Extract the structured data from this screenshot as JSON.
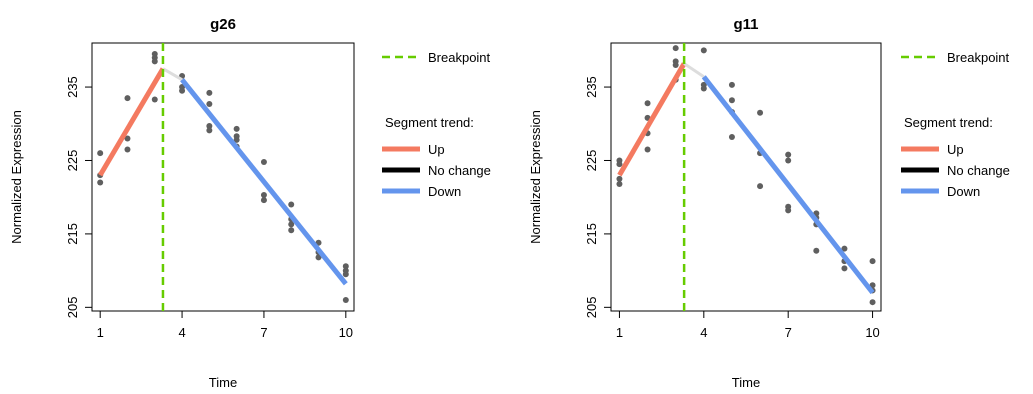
{
  "chart_data": [
    {
      "type": "scatter",
      "title": "g26",
      "xlabel": "Time",
      "ylabel": "Normalized Expression",
      "xlim": [
        0.7,
        10.3
      ],
      "ylim": [
        204.5,
        241
      ],
      "xticks": [
        "1",
        "4",
        "7",
        "10"
      ],
      "yticks": [
        "205",
        "215",
        "225",
        "235"
      ],
      "breakpoint": 3.3,
      "points": [
        {
          "x": 1,
          "y": 226
        },
        {
          "x": 1,
          "y": 223
        },
        {
          "x": 1,
          "y": 222
        },
        {
          "x": 2,
          "y": 233.5
        },
        {
          "x": 2,
          "y": 228
        },
        {
          "x": 2,
          "y": 226.5
        },
        {
          "x": 3,
          "y": 239.5
        },
        {
          "x": 3,
          "y": 239
        },
        {
          "x": 3,
          "y": 238.5
        },
        {
          "x": 3,
          "y": 233.3
        },
        {
          "x": 4,
          "y": 236.5
        },
        {
          "x": 4,
          "y": 235
        },
        {
          "x": 4,
          "y": 234.5
        },
        {
          "x": 5,
          "y": 234.2
        },
        {
          "x": 5,
          "y": 232.7
        },
        {
          "x": 5,
          "y": 229.7
        },
        {
          "x": 5,
          "y": 229.1
        },
        {
          "x": 6,
          "y": 229.3
        },
        {
          "x": 6,
          "y": 228.3
        },
        {
          "x": 6,
          "y": 227.8
        },
        {
          "x": 6,
          "y": 226.9
        },
        {
          "x": 7,
          "y": 224.8
        },
        {
          "x": 7,
          "y": 220.3
        },
        {
          "x": 7,
          "y": 219.6
        },
        {
          "x": 8,
          "y": 219
        },
        {
          "x": 8,
          "y": 217
        },
        {
          "x": 8,
          "y": 216.3
        },
        {
          "x": 8,
          "y": 215.5
        },
        {
          "x": 9,
          "y": 213.8
        },
        {
          "x": 9,
          "y": 212.5
        },
        {
          "x": 9,
          "y": 211.8
        },
        {
          "x": 10,
          "y": 210.6
        },
        {
          "x": 10,
          "y": 210
        },
        {
          "x": 10,
          "y": 209.5
        },
        {
          "x": 10,
          "y": 206
        }
      ],
      "segments": [
        {
          "trend": "Up",
          "x": [
            1,
            3.3
          ],
          "y": [
            223,
            237.5
          ]
        },
        {
          "trend": "connector",
          "x": [
            3.3,
            4
          ],
          "y": [
            237.5,
            236
          ]
        },
        {
          "trend": "Down",
          "x": [
            4,
            10
          ],
          "y": [
            236,
            208.2
          ]
        }
      ],
      "legend": {
        "breakpoint_label": "Breakpoint",
        "trend_title": "Segment trend:",
        "entries": [
          {
            "label": "Up",
            "color": "#f47a60"
          },
          {
            "label": "No change",
            "color": "#000000"
          },
          {
            "label": "Down",
            "color": "#6495ed"
          }
        ]
      }
    },
    {
      "type": "scatter",
      "title": "g11",
      "xlabel": "Time",
      "ylabel": "Normalized Expression",
      "xlim": [
        0.7,
        10.3
      ],
      "ylim": [
        204.5,
        241
      ],
      "xticks": [
        "1",
        "4",
        "7",
        "10"
      ],
      "yticks": [
        "205",
        "215",
        "225",
        "235"
      ],
      "breakpoint": 3.3,
      "points": [
        {
          "x": 1,
          "y": 225
        },
        {
          "x": 1,
          "y": 224.5
        },
        {
          "x": 1,
          "y": 222.5
        },
        {
          "x": 1,
          "y": 221.8
        },
        {
          "x": 2,
          "y": 232.8
        },
        {
          "x": 2,
          "y": 230.8
        },
        {
          "x": 2,
          "y": 228.7
        },
        {
          "x": 2,
          "y": 226.5
        },
        {
          "x": 3,
          "y": 240.3
        },
        {
          "x": 3,
          "y": 238.5
        },
        {
          "x": 3,
          "y": 238
        },
        {
          "x": 3,
          "y": 236
        },
        {
          "x": 4,
          "y": 240
        },
        {
          "x": 4,
          "y": 235.3
        },
        {
          "x": 4,
          "y": 234.8
        },
        {
          "x": 5,
          "y": 235.3
        },
        {
          "x": 5,
          "y": 233.2
        },
        {
          "x": 5,
          "y": 231.6
        },
        {
          "x": 5,
          "y": 228.2
        },
        {
          "x": 6,
          "y": 231.5
        },
        {
          "x": 6,
          "y": 226
        },
        {
          "x": 6,
          "y": 221.5
        },
        {
          "x": 7,
          "y": 225.8
        },
        {
          "x": 7,
          "y": 225
        },
        {
          "x": 7,
          "y": 218.7
        },
        {
          "x": 7,
          "y": 218.2
        },
        {
          "x": 8,
          "y": 217.8
        },
        {
          "x": 8,
          "y": 217.2
        },
        {
          "x": 8,
          "y": 216.3
        },
        {
          "x": 8,
          "y": 212.7
        },
        {
          "x": 9,
          "y": 213
        },
        {
          "x": 9,
          "y": 211.3
        },
        {
          "x": 9,
          "y": 210.3
        },
        {
          "x": 10,
          "y": 211.3
        },
        {
          "x": 10,
          "y": 208
        },
        {
          "x": 10,
          "y": 207.3
        },
        {
          "x": 10,
          "y": 205.7
        }
      ],
      "segments": [
        {
          "trend": "Up",
          "x": [
            1,
            3.3
          ],
          "y": [
            223,
            238.2
          ]
        },
        {
          "trend": "connector",
          "x": [
            3.3,
            4
          ],
          "y": [
            238.2,
            236.4
          ]
        },
        {
          "trend": "Down",
          "x": [
            4,
            10
          ],
          "y": [
            236.4,
            207
          ]
        }
      ],
      "legend": {
        "breakpoint_label": "Breakpoint",
        "trend_title": "Segment trend:",
        "entries": [
          {
            "label": "Up",
            "color": "#f47a60"
          },
          {
            "label": "No change",
            "color": "#000000"
          },
          {
            "label": "Down",
            "color": "#6495ed"
          }
        ]
      }
    }
  ],
  "colors": {
    "up": "#f47a60",
    "down": "#6495ed",
    "no_change": "#000000",
    "breakpoint": "#66cc00",
    "connector": "#dddddd",
    "points": "#5f5f5f"
  }
}
